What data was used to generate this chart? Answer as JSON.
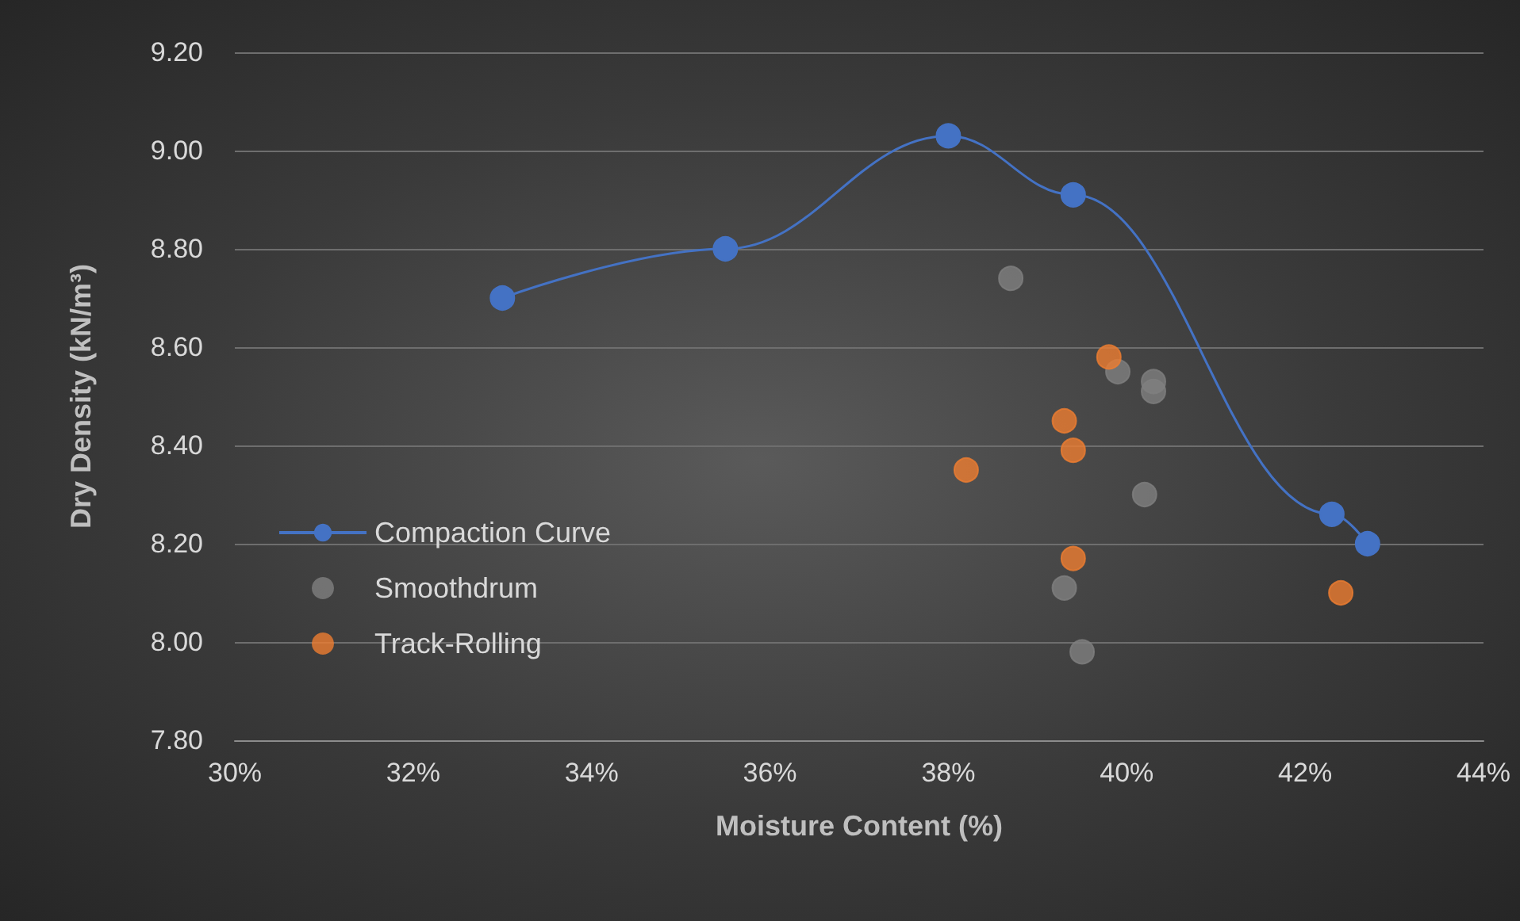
{
  "chart_data": {
    "type": "scatter",
    "xlabel": "Moisture Content (%)",
    "ylabel": "Dry Density (kN/m³)",
    "xlim": [
      30,
      44
    ],
    "xticks": [
      {
        "value": 30,
        "label": "30%"
      },
      {
        "value": 32,
        "label": "32%"
      },
      {
        "value": 34,
        "label": "34%"
      },
      {
        "value": 36,
        "label": "36%"
      },
      {
        "value": 38,
        "label": "38%"
      },
      {
        "value": 40,
        "label": "40%"
      },
      {
        "value": 42,
        "label": "42%"
      },
      {
        "value": 44,
        "label": "44%"
      }
    ],
    "ylim": [
      7.8,
      9.2
    ],
    "yticks": [
      {
        "value": 7.8,
        "label": "7.80"
      },
      {
        "value": 8.0,
        "label": "8.00"
      },
      {
        "value": 8.2,
        "label": "8.20"
      },
      {
        "value": 8.4,
        "label": "8.40"
      },
      {
        "value": 8.6,
        "label": "8.60"
      },
      {
        "value": 8.8,
        "label": "8.80"
      },
      {
        "value": 9.0,
        "label": "9.00"
      },
      {
        "value": 9.2,
        "label": "9.20"
      }
    ],
    "grid": "y",
    "legend": "left",
    "marker": "circle",
    "series": [
      {
        "name": "Compaction Curve",
        "type": "line",
        "line_style": "solid",
        "color": "#4472c4",
        "x": [
          33.0,
          35.5,
          38.0,
          39.4,
          42.3,
          42.7
        ],
        "values": [
          8.7,
          8.8,
          9.03,
          8.91,
          8.26,
          8.2
        ]
      },
      {
        "name": "Smoothdrum",
        "color": "#7f7f7f",
        "x": [
          38.7,
          39.9,
          40.3,
          40.3,
          40.2,
          39.3,
          39.5
        ],
        "values": [
          8.74,
          8.55,
          8.53,
          8.51,
          8.3,
          8.11,
          7.98
        ]
      },
      {
        "name": "Track-Rolling",
        "color": "#ed7d31",
        "x": [
          39.8,
          39.3,
          39.4,
          38.2,
          39.4,
          42.4
        ],
        "values": [
          8.58,
          8.45,
          8.39,
          8.35,
          8.17,
          8.1
        ]
      }
    ]
  }
}
